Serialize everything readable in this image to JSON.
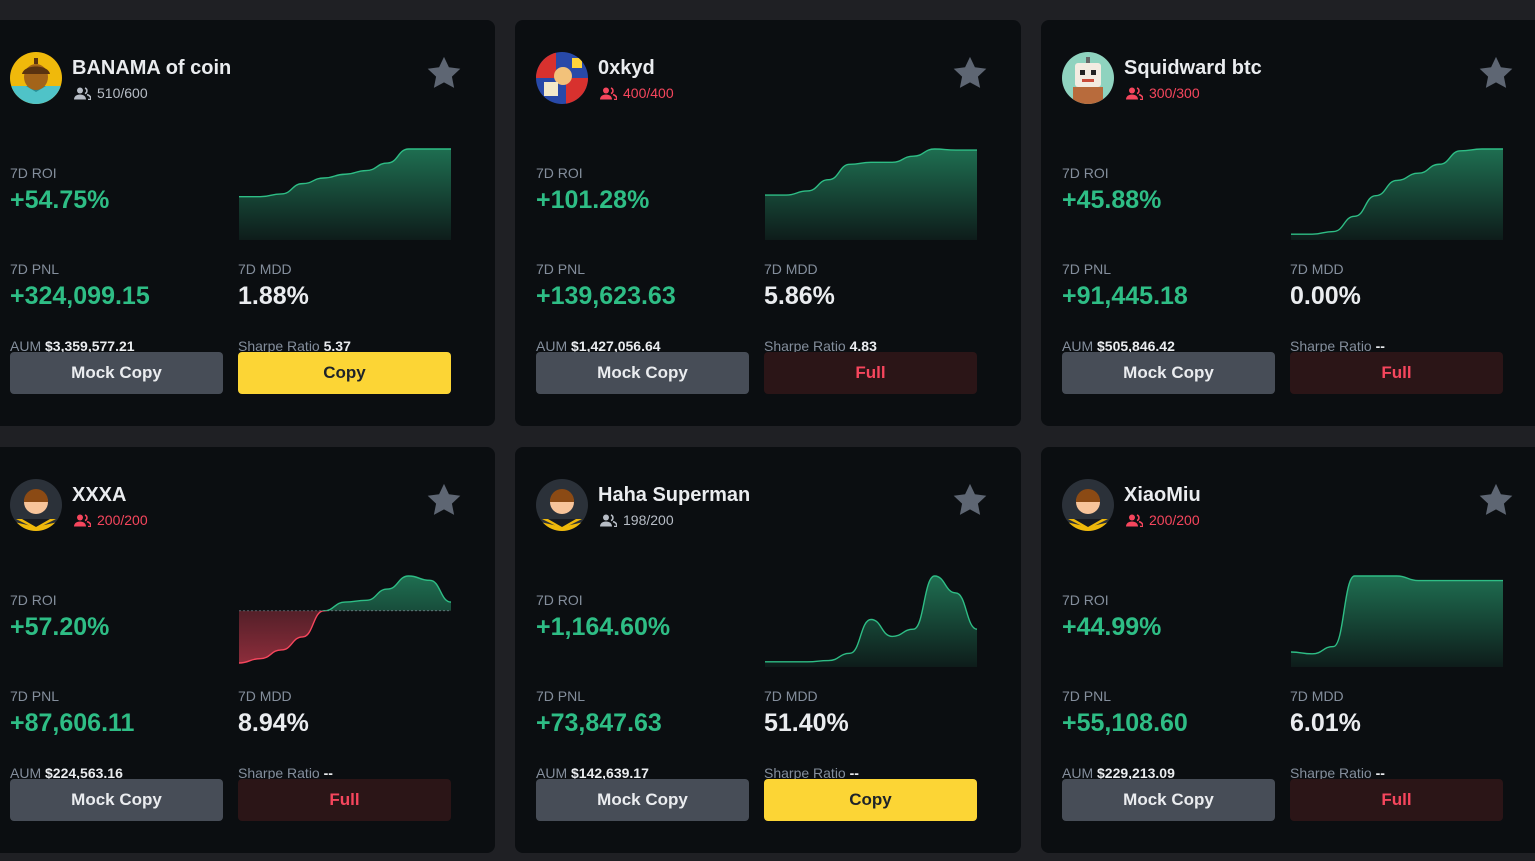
{
  "colors": {
    "background": "#1f2024",
    "card": "#0b0e11",
    "positive": "#2ebd85",
    "negative": "#f6465d",
    "copy_button": "#fcd535",
    "mock_button": "#474d57",
    "full_button": "#2b1517"
  },
  "labels": {
    "roi": "7D ROI",
    "pnl": "7D PNL",
    "mdd": "7D MDD",
    "aum": "AUM",
    "sharpe": "Sharpe Ratio",
    "mock_copy": "Mock Copy"
  },
  "icons": {
    "followers": "people-icon",
    "favorite": "star-icon"
  },
  "cards": [
    {
      "name": "BANAMA of coin",
      "followers": "510/600",
      "followers_full": false,
      "roi": "+54.75%",
      "pnl": "+324,099.15",
      "mdd": "1.88%",
      "aum": "$3,359,577.21",
      "sharpe": "5.37",
      "action": "Copy",
      "action_state": "copy",
      "avatar": "acorn-avatar",
      "chart_data": {
        "type": "area",
        "x": [
          0,
          1,
          2,
          3,
          4,
          5,
          6,
          7,
          8,
          9,
          10
        ],
        "values": [
          0.42,
          0.42,
          0.45,
          0.56,
          0.62,
          0.66,
          0.7,
          0.78,
          0.93,
          0.93,
          0.93
        ],
        "baseline": 0
      }
    },
    {
      "name": "0xkyd",
      "followers": "400/400",
      "followers_full": true,
      "roi": "+101.28%",
      "pnl": "+139,623.63",
      "mdd": "5.86%",
      "aum": "$1,427,056.64",
      "sharpe": "4.83",
      "action": "Full",
      "action_state": "full",
      "avatar": "comic-avatar",
      "chart_data": {
        "type": "area",
        "x": [
          0,
          1,
          2,
          3,
          4,
          5,
          6,
          7,
          8,
          9,
          10
        ],
        "values": [
          0.4,
          0.4,
          0.44,
          0.55,
          0.7,
          0.72,
          0.72,
          0.78,
          0.85,
          0.84,
          0.84
        ],
        "baseline": 0
      }
    },
    {
      "name": "Squidward btc",
      "followers": "300/300",
      "followers_full": true,
      "roi": "+45.88%",
      "pnl": "+91,445.18",
      "mdd": "0.00%",
      "aum": "$505,846.42",
      "sharpe": "--",
      "action": "Full",
      "action_state": "full",
      "avatar": "robot-avatar",
      "chart_data": {
        "type": "area",
        "x": [
          0,
          1,
          2,
          3,
          4,
          5,
          6,
          7,
          8,
          9,
          10
        ],
        "values": [
          0.02,
          0.02,
          0.05,
          0.22,
          0.45,
          0.62,
          0.7,
          0.8,
          0.95,
          0.97,
          0.97
        ],
        "baseline": 0
      }
    },
    {
      "name": "XXXA",
      "followers": "200/200",
      "followers_full": true,
      "roi": "+57.20%",
      "pnl": "+87,606.11",
      "mdd": "8.94%",
      "aum": "$224,563.16",
      "sharpe": "--",
      "action": "Full",
      "action_state": "full",
      "avatar": "default-avatar",
      "chart_data": {
        "type": "area",
        "x": [
          0,
          1,
          2,
          3,
          4,
          5,
          6,
          7,
          8,
          9,
          10
        ],
        "values": [
          -0.6,
          -0.55,
          -0.45,
          -0.3,
          0,
          0.1,
          0.12,
          0.25,
          0.4,
          0.35,
          0.1
        ],
        "baseline": 0
      }
    },
    {
      "name": "Haha Superman",
      "followers": "198/200",
      "followers_full": false,
      "roi": "+1,164.60%",
      "pnl": "+73,847.63",
      "mdd": "51.40%",
      "aum": "$142,639.17",
      "sharpe": "--",
      "action": "Copy",
      "action_state": "copy",
      "avatar": "default-avatar",
      "chart_data": {
        "type": "area",
        "x": [
          0,
          1,
          2,
          3,
          4,
          5,
          6,
          7,
          8,
          9,
          10
        ],
        "values": [
          0.01,
          0.01,
          0.01,
          0.02,
          0.08,
          0.36,
          0.22,
          0.28,
          0.72,
          0.58,
          0.28
        ],
        "baseline": 0
      }
    },
    {
      "name": "XiaoMiu",
      "followers": "200/200",
      "followers_full": true,
      "roi": "+44.99%",
      "pnl": "+55,108.60",
      "mdd": "6.01%",
      "aum": "$229,213.09",
      "sharpe": "--",
      "action": "Full",
      "action_state": "full",
      "avatar": "default-avatar",
      "chart_data": {
        "type": "area",
        "x": [
          0,
          1,
          2,
          3,
          4,
          5,
          6,
          7,
          8,
          9,
          10
        ],
        "values": [
          0.12,
          0.1,
          0.18,
          0.95,
          0.95,
          0.95,
          0.9,
          0.9,
          0.9,
          0.9,
          0.9
        ],
        "baseline": 0
      }
    }
  ]
}
